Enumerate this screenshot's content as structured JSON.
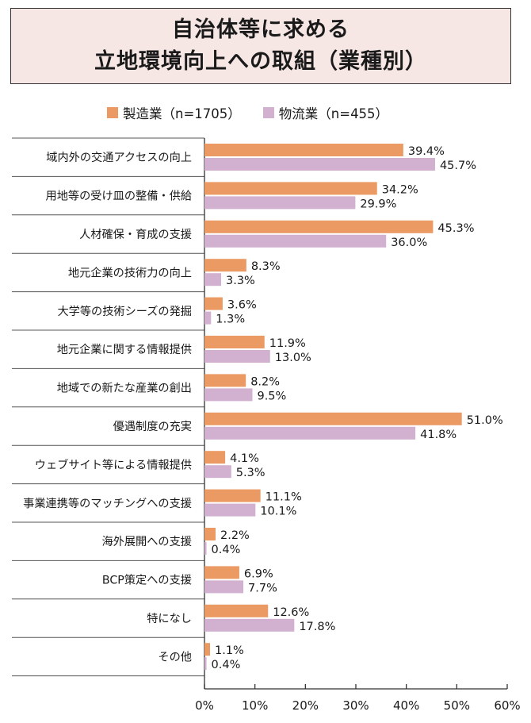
{
  "title": {
    "line1": "自治体等に求める",
    "line2": "立地環境向上への取組（業種別）"
  },
  "colors": {
    "series1": "#eb9a63",
    "series2": "#d1b1cf",
    "title_bg": "#f6e7e5",
    "grid": "#555555"
  },
  "chart_data": {
    "type": "bar",
    "orientation": "horizontal",
    "title": "自治体等に求める立地環境向上への取組（業種別）",
    "categories": [
      "域内外の交通アクセスの向上",
      "用地等の受け皿の整備・供給",
      "人材確保・育成の支援",
      "地元企業の技術力の向上",
      "大学等の技術シーズの発掘",
      "地元企業に関する情報提供",
      "地域での新たな産業の創出",
      "優遇制度の充実",
      "ウェブサイト等による情報提供",
      "事業連携等のマッチングへの支援",
      "海外展開への支援",
      "BCP策定への支援",
      "特になし",
      "その他"
    ],
    "series": [
      {
        "name": "製造業（n=1705）",
        "values": [
          39.4,
          34.2,
          45.3,
          8.3,
          3.6,
          11.9,
          8.2,
          51.0,
          4.1,
          11.1,
          2.2,
          6.9,
          12.6,
          1.1
        ],
        "labels": [
          "39.4%",
          "34.2%",
          "45.3%",
          "8.3%",
          "3.6%",
          "11.9%",
          "8.2%",
          "51.0%",
          "4.1%",
          "11.1%",
          "2.2%",
          "6.9%",
          "12.6%",
          "1.1%"
        ]
      },
      {
        "name": "物流業（n=455）",
        "values": [
          45.7,
          29.9,
          36.0,
          3.3,
          1.3,
          13.0,
          9.5,
          41.8,
          5.3,
          10.1,
          0.4,
          7.7,
          17.8,
          0.4
        ],
        "labels": [
          "45.7%",
          "29.9%",
          "36.0%",
          "3.3%",
          "1.3%",
          "13.0%",
          "9.5%",
          "41.8%",
          "5.3%",
          "10.1%",
          "0.4%",
          "7.7%",
          "17.8%",
          "0.4%"
        ]
      }
    ],
    "xlim": [
      0,
      60
    ],
    "xticks": [
      0,
      10,
      20,
      30,
      40,
      50,
      60
    ],
    "xtick_labels": [
      "0%",
      "10%",
      "20%",
      "30%",
      "40%",
      "50%",
      "60%"
    ],
    "legend_position": "top",
    "grid": false
  }
}
